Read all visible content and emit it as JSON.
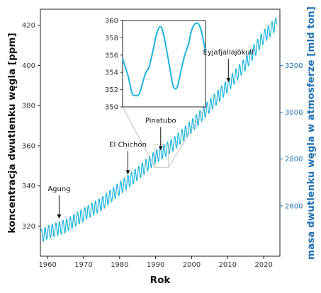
{
  "chart_data": {
    "type": "line",
    "title": "",
    "xlabel": "Rok",
    "ylabel": "koncentracja dwutlenku węgla [ppm]",
    "ylabel_right": "masa dwutlenku węgla w atmosferze [mld ton]",
    "xlim": [
      1958,
      2024.5
    ],
    "ylim": [
      305,
      428
    ],
    "ylim_right": [
      2385,
      3440
    ],
    "x_ticks": [
      1960,
      1970,
      1980,
      1990,
      2000,
      2010,
      2020
    ],
    "y_ticks": [
      320,
      340,
      360,
      380,
      400,
      420
    ],
    "y_ticks_right": [
      2600,
      2800,
      3000,
      3200
    ],
    "grid": false,
    "series": [
      {
        "values_note_unused": null,
        "color": "#1cb4dc",
        "trend_points": [
          [
            1958.2,
            315.0
          ],
          [
            1960,
            316.9
          ],
          [
            1965,
            320.0
          ],
          [
            1970,
            325.7
          ],
          [
            1975,
            331.1
          ],
          [
            1980,
            338.7
          ],
          [
            1985,
            346.1
          ],
          [
            1990,
            354.4
          ],
          [
            1995,
            360.8
          ],
          [
            2000,
            369.7
          ],
          [
            2005,
            379.8
          ],
          [
            2010,
            389.9
          ],
          [
            2015,
            401.0
          ],
          [
            2020,
            414.2
          ],
          [
            2023.6,
            421.0
          ]
        ],
        "seasonal_amplitude_ppm": 3.3
      }
    ],
    "inset": {
      "type": "line",
      "ylim": [
        350,
        360
      ],
      "y_ticks": [
        350,
        352,
        354,
        356,
        358,
        360
      ],
      "xlim": [
        1990.6,
        1992.8
      ],
      "points": [
        [
          1990.6,
          355.6
        ],
        [
          1990.75,
          353.5
        ],
        [
          1990.85,
          351.6
        ],
        [
          1990.95,
          351.3
        ],
        [
          1991.05,
          351.6
        ],
        [
          1991.2,
          353.8
        ],
        [
          1991.3,
          354.6
        ],
        [
          1991.4,
          356.4
        ],
        [
          1991.5,
          358.4
        ],
        [
          1991.6,
          359.3
        ],
        [
          1991.68,
          358.5
        ],
        [
          1991.78,
          356.3
        ],
        [
          1991.88,
          353.8
        ],
        [
          1991.95,
          352.3
        ],
        [
          1992.05,
          352.3
        ],
        [
          1992.15,
          354.2
        ],
        [
          1992.25,
          356.0
        ],
        [
          1992.35,
          357.3
        ],
        [
          1992.42,
          358.7
        ],
        [
          1992.5,
          359.5
        ],
        [
          1992.58,
          359.7
        ],
        [
          1992.65,
          359.3
        ],
        [
          1992.72,
          358.2
        ],
        [
          1992.8,
          356.4
        ]
      ]
    },
    "annotations": [
      {
        "label": "Agung",
        "x": 1963.2,
        "y": 323.0
      },
      {
        "label": "El Chichón",
        "x": 1982.3,
        "y": 345.0
      },
      {
        "label": "Pinatubo",
        "x": 1991.4,
        "y": 357.0
      },
      {
        "label": "Eyjafjallajökull",
        "x": 2010.2,
        "y": 391.0
      }
    ],
    "colors": {
      "line": "#1cb4dc",
      "right_axis": "#2272b4",
      "left_axis_title": "#111111",
      "zoom_lines": "#b4b4b4"
    }
  }
}
